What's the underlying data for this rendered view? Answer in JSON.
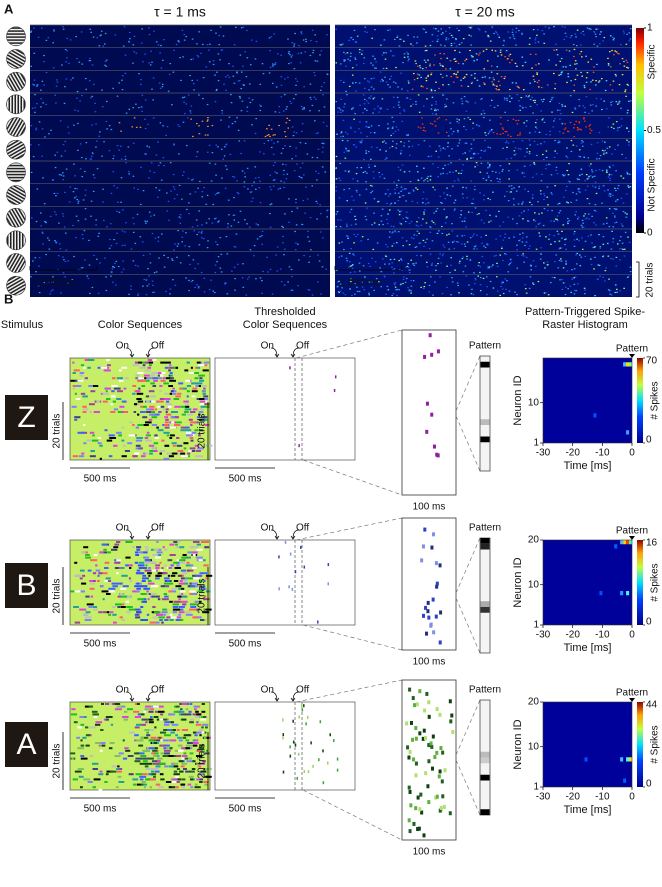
{
  "panel_a": {
    "label": "A",
    "titles": [
      "τ = 1 ms",
      "τ = 20 ms"
    ],
    "colorbar": {
      "lim": [
        0,
        1
      ],
      "ticks": [
        1,
        0.5,
        0
      ],
      "labels": [
        "Specific",
        "Not Specific"
      ]
    },
    "scale_x": [
      "1,000 ms",
      "1,000 ms"
    ],
    "scale_y": "20 trials"
  },
  "panel_b": {
    "label": "B",
    "headers": {
      "stimulus": "Stimulus",
      "color_sequences": "Color Sequences",
      "thresholded": [
        "Thresholded",
        "Color Sequences"
      ],
      "histogram": [
        "Pattern-Triggered Spike-",
        "Raster Histogram"
      ]
    },
    "rows": [
      {
        "stimulus": "Z",
        "on": "On",
        "off": "Off",
        "trials": "20 trials",
        "scale": "500 ms",
        "zoom_scale": "100 ms",
        "pattern": "Pattern",
        "histogram": {
          "ylabel": "Neuron ID",
          "xlabel": "Time [ms]",
          "clabel": "# Spikes",
          "xlim": [
            -30,
            0
          ],
          "xticks": [
            -30,
            -20,
            -10,
            0
          ],
          "ylim": [
            1,
            20
          ],
          "yticks": [
            1,
            10
          ],
          "clim": [
            0,
            70
          ],
          "cticks": [
            0,
            70
          ]
        }
      },
      {
        "stimulus": "B",
        "on": "On",
        "off": "Off",
        "trials": "20 trials",
        "scale": "500 ms",
        "zoom_scale": "100 ms",
        "pattern": "Pattern",
        "histogram": {
          "ylabel": "Neuron ID",
          "xlabel": "Time [ms]",
          "clabel": "# Spikes",
          "xlim": [
            -30,
            0
          ],
          "xticks": [
            -30,
            -20,
            -10,
            0
          ],
          "ylim": [
            1,
            20
          ],
          "yticks": [
            1,
            10,
            20
          ],
          "clim": [
            0,
            16
          ],
          "cticks": [
            0,
            16
          ]
        }
      },
      {
        "stimulus": "A",
        "on": "On",
        "off": "Off",
        "trials": "20 trials",
        "scale": "500 ms",
        "zoom_scale": "100 ms",
        "pattern": "Pattern",
        "histogram": {
          "ylabel": "Neuron ID",
          "xlabel": "Time [ms]",
          "clabel": "# Spikes",
          "xlim": [
            -30,
            0
          ],
          "xticks": [
            -30,
            -20,
            -10,
            0
          ],
          "ylim": [
            1,
            20
          ],
          "yticks": [
            1,
            10,
            20
          ],
          "clim": [
            0,
            44
          ],
          "cticks": [
            0,
            44
          ]
        }
      }
    ]
  }
}
